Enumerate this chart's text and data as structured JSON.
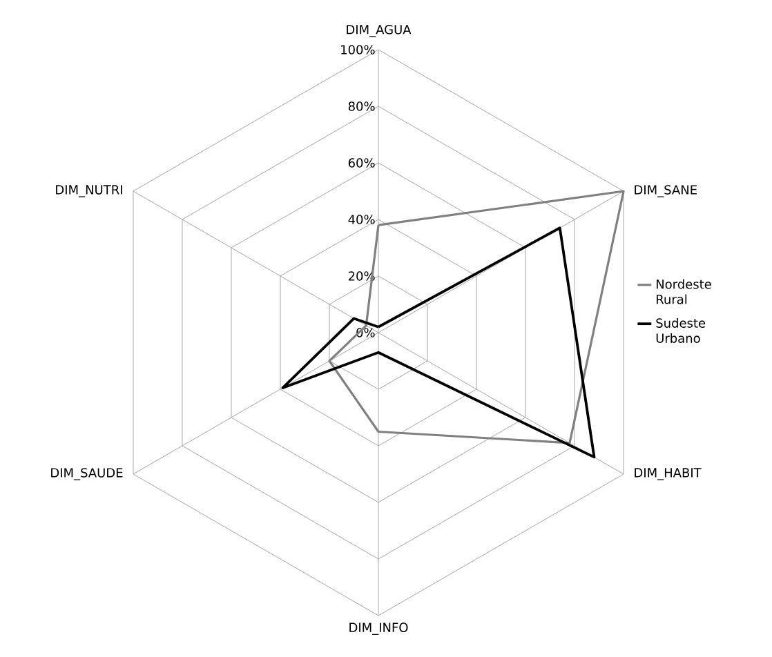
{
  "chart_data": {
    "type": "radar",
    "categories": [
      "DIM_AGUA",
      "DIM_SANE",
      "DIM_HABIT",
      "DIM_INFO",
      "DIM_SAUDE",
      "DIM_NUTRI"
    ],
    "series": [
      {
        "name": "Nordeste Rural",
        "color": "#808080",
        "values": [
          38,
          100,
          78,
          35,
          20,
          5
        ]
      },
      {
        "name": "Sudeste Urbano",
        "color": "#000000",
        "values": [
          2,
          74,
          88,
          7,
          39,
          10
        ]
      }
    ],
    "ylim": [
      0,
      100
    ],
    "yticks": [
      {
        "value": 0,
        "label": "0%"
      },
      {
        "value": 20,
        "label": "20%"
      },
      {
        "value": 40,
        "label": "40%"
      },
      {
        "value": 60,
        "label": "60%"
      },
      {
        "value": 80,
        "label": "80%"
      },
      {
        "value": 100,
        "label": "100%"
      }
    ],
    "grid": true,
    "legend": "right"
  }
}
